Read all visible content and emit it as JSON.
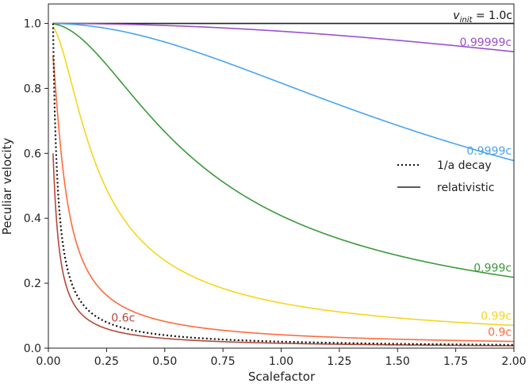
{
  "chart_data": {
    "type": "line",
    "xlabel": "Scalefactor",
    "ylabel": "Peculiar velocity",
    "xlim": [
      0.0,
      2.0
    ],
    "ylim": [
      0.0,
      1.06
    ],
    "xticks": [
      "0.00",
      "0.25",
      "0.50",
      "0.75",
      "1.00",
      "1.25",
      "1.50",
      "1.75",
      "2.00"
    ],
    "yticks": [
      "0.0",
      "0.2",
      "0.4",
      "0.6",
      "0.8",
      "1.0"
    ],
    "grid": false,
    "a_init": 0.02,
    "legend": {
      "placement": "center-right",
      "entries": [
        {
          "label": "1/a decay",
          "style": "dotted"
        },
        {
          "label": "relativistic",
          "style": "solid"
        }
      ]
    },
    "top_label": {
      "var": "v",
      "sub": "init",
      "rest": " = 1.0c"
    },
    "series": [
      {
        "name": "1.0c",
        "v_init": 1.0,
        "color": "#222222",
        "style": "solid"
      },
      {
        "name": "0.99999c",
        "v_init": 0.99999,
        "color": "#9b4fd0",
        "style": "solid"
      },
      {
        "name": "0.9999c",
        "v_init": 0.9999,
        "color": "#4aa3f0",
        "style": "solid"
      },
      {
        "name": "0.999c",
        "v_init": 0.999,
        "color": "#3a9a3a",
        "style": "solid"
      },
      {
        "name": "0.99c",
        "v_init": 0.99,
        "color": "#f5d61c",
        "style": "solid"
      },
      {
        "name": "0.9c",
        "v_init": 0.9,
        "color": "#ff6a3d",
        "style": "solid"
      },
      {
        "name": "0.6c",
        "v_init": 0.6,
        "color": "#b5473a",
        "style": "solid"
      },
      {
        "name": "1/a decay",
        "v_init": 1.0,
        "color": "#111111",
        "style": "dotted",
        "model": "1/a"
      }
    ],
    "annotations": [
      "0.99999c",
      "0.9999c",
      "0.999c",
      "0.99c",
      "0.9c",
      "0.6c"
    ]
  }
}
